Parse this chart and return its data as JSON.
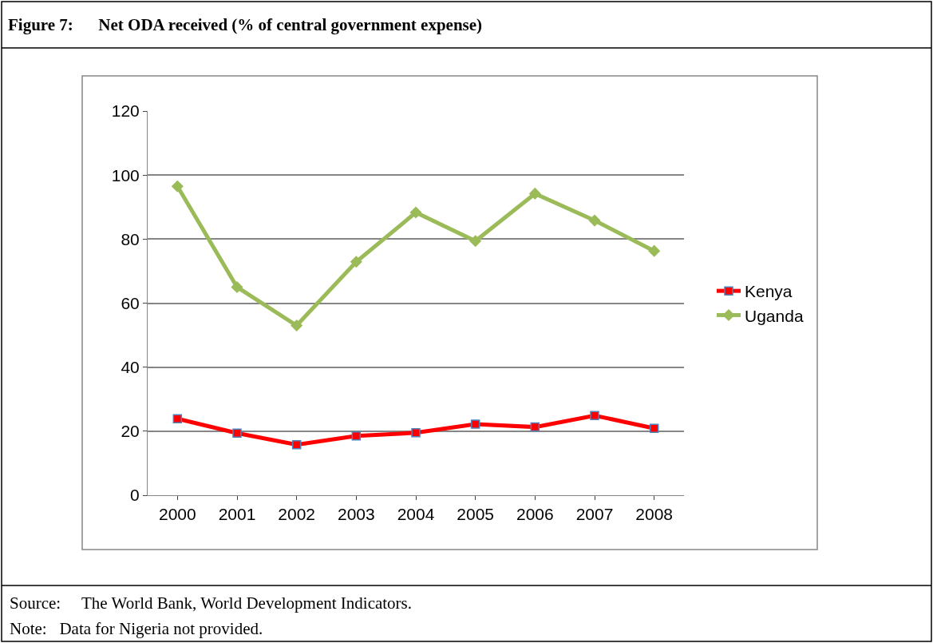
{
  "chart_data": {
    "type": "line",
    "title": "Figure 7:      Net ODA received (% of central government expense)",
    "categories": [
      "2000",
      "2001",
      "2002",
      "2003",
      "2004",
      "2005",
      "2006",
      "2007",
      "2008"
    ],
    "series": [
      {
        "name": "Kenya",
        "color": "#ff0000",
        "marker": "square",
        "values": [
          23.9,
          19.4,
          15.8,
          18.5,
          19.5,
          22.2,
          21.3,
          24.9,
          20.9
        ]
      },
      {
        "name": "Uganda",
        "color": "#9bbb59",
        "marker": "diamond",
        "values": [
          96.5,
          65,
          53,
          72.9,
          88.3,
          79.4,
          94.2,
          85.8,
          76.3
        ]
      }
    ],
    "ylim": [
      0,
      120
    ],
    "yticks": [
      0,
      20,
      40,
      60,
      80,
      100,
      120
    ],
    "grid": "y",
    "legend": "right",
    "line_style": "solid",
    "annotations": [
      "Source:     The World Bank, World Development Indicators.",
      "Note:   Data for Nigeria not provided."
    ]
  }
}
